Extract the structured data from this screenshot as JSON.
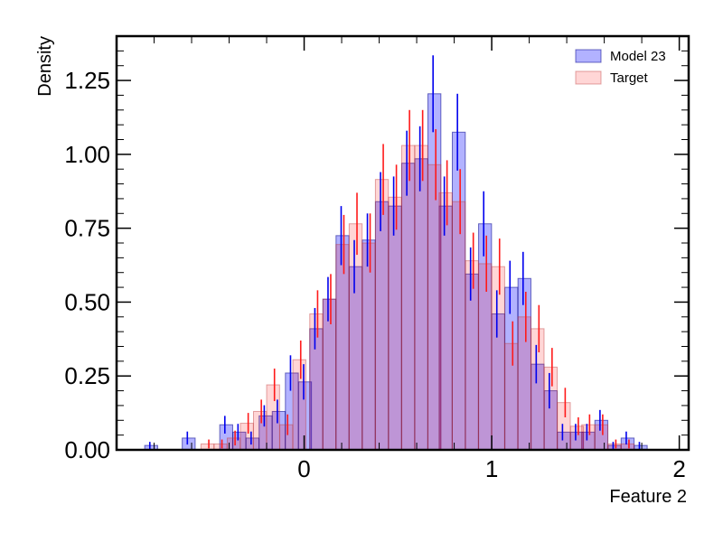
{
  "chart_data": {
    "type": "bar",
    "xlabel": "Feature 2",
    "ylabel": "Density",
    "xlim": [
      -1.0,
      2.05
    ],
    "ylim": [
      0,
      1.4
    ],
    "bin_edges": [
      -0.9,
      -0.8,
      -0.7,
      -0.6,
      -0.5,
      -0.4,
      -0.3,
      -0.2,
      -0.1,
      0.0,
      0.1,
      0.2,
      0.3,
      0.4,
      0.5,
      0.6,
      0.7,
      0.8,
      0.9,
      1.0,
      1.1,
      1.2,
      1.3,
      1.4,
      1.5,
      1.6,
      1.7,
      1.8,
      1.9,
      2.0
    ],
    "x_ticks": [
      0,
      1,
      2
    ],
    "x_tick_labels": [
      "0",
      "1",
      "2"
    ],
    "y_ticks": [
      0.0,
      0.25,
      0.5,
      0.75,
      1.0,
      1.25
    ],
    "y_tick_labels": [
      "0.00",
      "0.25",
      "0.50",
      "0.75",
      "1.00",
      "1.25"
    ],
    "legend_position": "top-right",
    "series": [
      {
        "name": "Model 23",
        "color": "#0000ff",
        "bin_left": [
          -0.85,
          -0.65,
          -0.45,
          -0.38,
          -0.31,
          -0.24,
          -0.17,
          -0.1,
          -0.03,
          0.03,
          0.1,
          0.17,
          0.24,
          0.31,
          0.38,
          0.45,
          0.52,
          0.59,
          0.66,
          0.72,
          0.79,
          0.86,
          0.93,
          1.0,
          1.07,
          1.14,
          1.21,
          1.28,
          1.35,
          1.42,
          1.48,
          1.55,
          1.62,
          1.69,
          1.76
        ],
        "bin_width": 0.069,
        "values": [
          0.015,
          0.04,
          0.085,
          0.06,
          0.04,
          0.115,
          0.13,
          0.26,
          0.23,
          0.41,
          0.51,
          0.725,
          0.62,
          0.71,
          0.84,
          0.825,
          0.97,
          0.985,
          1.205,
          0.825,
          1.075,
          0.595,
          0.765,
          0.46,
          0.55,
          0.58,
          0.29,
          0.2,
          0.06,
          0.06,
          0.06,
          0.1,
          0.015,
          0.04,
          0.015
        ],
        "errors": [
          0.012,
          0.022,
          0.03,
          0.028,
          0.022,
          0.036,
          0.04,
          0.06,
          0.06,
          0.07,
          0.075,
          0.1,
          0.09,
          0.09,
          0.1,
          0.1,
          0.11,
          0.11,
          0.13,
          0.1,
          0.13,
          0.09,
          0.11,
          0.08,
          0.09,
          0.09,
          0.065,
          0.06,
          0.028,
          0.028,
          0.028,
          0.035,
          0.012,
          0.022,
          0.012
        ]
      },
      {
        "name": "Target",
        "color": "#ff0000",
        "bin_left": [
          -0.55,
          -0.48,
          -0.41,
          -0.34,
          -0.27,
          -0.2,
          -0.13,
          -0.06,
          0.03,
          0.1,
          0.17,
          0.24,
          0.31,
          0.38,
          0.45,
          0.52,
          0.59,
          0.66,
          0.72,
          0.79,
          0.86,
          0.93,
          1.0,
          1.07,
          1.14,
          1.21,
          1.28,
          1.35,
          1.42,
          1.48,
          1.55,
          1.62,
          1.69
        ],
        "bin_width": 0.069,
        "values": [
          0.02,
          0.02,
          0.04,
          0.09,
          0.13,
          0.22,
          0.085,
          0.305,
          0.46,
          0.51,
          0.695,
          0.765,
          0.7,
          0.915,
          0.855,
          1.03,
          1.03,
          0.965,
          0.87,
          0.84,
          0.64,
          0.63,
          0.62,
          0.36,
          0.45,
          0.41,
          0.28,
          0.16,
          0.08,
          0.085,
          0.085,
          0.02,
          0.02
        ],
        "errors": [
          0.015,
          0.015,
          0.025,
          0.035,
          0.04,
          0.055,
          0.035,
          0.065,
          0.08,
          0.085,
          0.1,
          0.105,
          0.1,
          0.12,
          0.11,
          0.12,
          0.12,
          0.12,
          0.11,
          0.11,
          0.095,
          0.095,
          0.095,
          0.075,
          0.085,
          0.08,
          0.065,
          0.05,
          0.03,
          0.035,
          0.035,
          0.015,
          0.015
        ]
      }
    ]
  }
}
